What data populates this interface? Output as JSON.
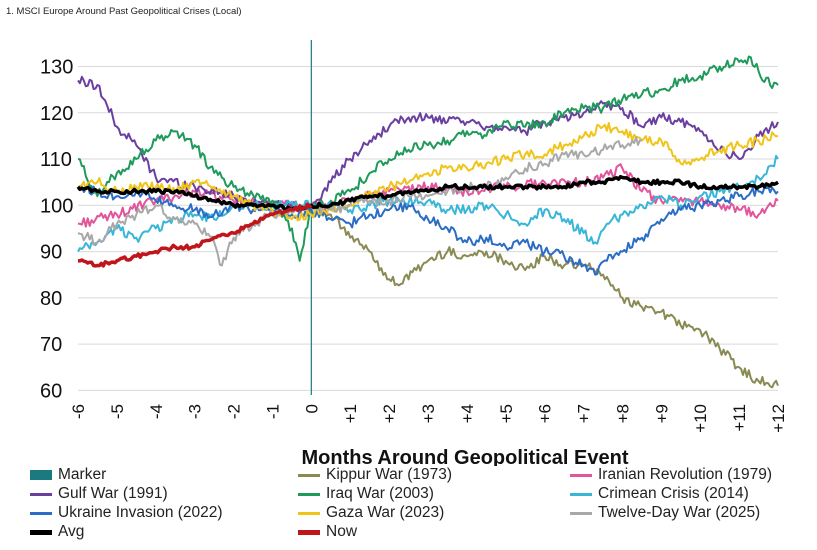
{
  "header": {
    "title": "1. MSCI Europe Around Past Geopolitical Crises (Local)"
  },
  "chart_data": {
    "type": "line",
    "title": "1. MSCI Europe Around Past Geopolitical Crises (Local)",
    "xlabel": "Months Around Geopolitical Event",
    "ylabel": "",
    "x_ticks": [
      "-6",
      "-5",
      "-4",
      "-3",
      "-2",
      "-1",
      "0",
      "+1",
      "+2",
      "+3",
      "+4",
      "+5",
      "+6",
      "+7",
      "+8",
      "+9",
      "+10",
      "+11",
      "+12"
    ],
    "y_ticks": [
      60,
      70,
      80,
      90,
      100,
      110,
      120,
      130
    ],
    "xlim": [
      -6,
      12
    ],
    "ylim": [
      59,
      134
    ],
    "grid": "horizontal",
    "marker_x": 0,
    "legend_position": "bottom",
    "series": [
      {
        "name": "Marker",
        "color": "#1a7a80",
        "width": 0,
        "box": true,
        "points": []
      },
      {
        "name": "Kippur War (1973)",
        "color": "#8a8a55",
        "width": 2,
        "points": [
          [
            0,
            100
          ],
          [
            0.5,
            98
          ],
          [
            1,
            93
          ],
          [
            1.5,
            90
          ],
          [
            2,
            84
          ],
          [
            2.3,
            83
          ],
          [
            2.7,
            86
          ],
          [
            3,
            88
          ],
          [
            3.5,
            90
          ],
          [
            4,
            89
          ],
          [
            4.5,
            90
          ],
          [
            5,
            88
          ],
          [
            5.5,
            86
          ],
          [
            6,
            89
          ],
          [
            6.5,
            87
          ],
          [
            7,
            87
          ],
          [
            7.5,
            85
          ],
          [
            8,
            80
          ],
          [
            8.5,
            78
          ],
          [
            9,
            77
          ],
          [
            9.5,
            74
          ],
          [
            10,
            73
          ],
          [
            10.5,
            69
          ],
          [
            11,
            65
          ],
          [
            11.5,
            62
          ],
          [
            12,
            61
          ]
        ]
      },
      {
        "name": "Iranian Revolution (1979)",
        "color": "#e0559b",
        "width": 2,
        "points": [
          [
            -6,
            96
          ],
          [
            -5,
            98
          ],
          [
            -4,
            101
          ],
          [
            -3,
            103
          ],
          [
            -2,
            101
          ],
          [
            -1,
            100
          ],
          [
            0,
            100
          ],
          [
            1,
            101
          ],
          [
            2,
            103
          ],
          [
            3,
            104
          ],
          [
            4,
            103
          ],
          [
            5,
            104
          ],
          [
            6,
            105
          ],
          [
            7,
            105
          ],
          [
            7.5,
            106
          ],
          [
            8,
            108
          ],
          [
            8.5,
            103
          ],
          [
            9,
            101
          ],
          [
            10,
            101
          ],
          [
            10.5,
            100
          ],
          [
            11,
            99
          ],
          [
            11.5,
            98
          ],
          [
            12,
            101
          ]
        ]
      },
      {
        "name": "Gulf War (1991)",
        "color": "#6b3fa0",
        "width": 2,
        "points": [
          [
            -6,
            127
          ],
          [
            -5.5,
            126
          ],
          [
            -5,
            117
          ],
          [
            -4.5,
            113
          ],
          [
            -4,
            106
          ],
          [
            -3,
            104
          ],
          [
            -2,
            102
          ],
          [
            -1,
            100
          ],
          [
            0,
            100
          ],
          [
            0.5,
            105
          ],
          [
            1,
            110
          ],
          [
            1.5,
            114
          ],
          [
            2,
            117
          ],
          [
            2.5,
            119
          ],
          [
            3,
            119
          ],
          [
            3.5,
            118
          ],
          [
            4,
            118
          ],
          [
            4.5,
            117
          ],
          [
            5,
            117
          ],
          [
            5.5,
            116
          ],
          [
            6,
            118
          ],
          [
            6.5,
            119
          ],
          [
            7,
            120
          ],
          [
            7.5,
            122
          ],
          [
            8,
            121
          ],
          [
            8.5,
            117
          ],
          [
            9,
            119
          ],
          [
            9.5,
            118
          ],
          [
            10,
            116
          ],
          [
            10.5,
            112
          ],
          [
            11,
            110
          ],
          [
            11.5,
            115
          ],
          [
            12,
            118
          ]
        ]
      },
      {
        "name": "Iraq War (2003)",
        "color": "#1f9a5a",
        "width": 2,
        "points": [
          [
            -6,
            110
          ],
          [
            -5.5,
            102
          ],
          [
            -5,
            107
          ],
          [
            -4.5,
            110
          ],
          [
            -4,
            114
          ],
          [
            -3.5,
            116
          ],
          [
            -3,
            113
          ],
          [
            -2.5,
            107
          ],
          [
            -2,
            104
          ],
          [
            -1,
            101
          ],
          [
            -0.5,
            95
          ],
          [
            -0.3,
            88
          ],
          [
            0,
            100
          ],
          [
            0.5,
            101
          ],
          [
            1,
            103
          ],
          [
            1.5,
            107
          ],
          [
            2,
            110
          ],
          [
            2.5,
            112
          ],
          [
            3,
            113
          ],
          [
            3.5,
            114
          ],
          [
            4,
            116
          ],
          [
            4.5,
            115
          ],
          [
            5,
            118
          ],
          [
            5.5,
            117
          ],
          [
            6,
            118
          ],
          [
            6.5,
            120
          ],
          [
            7,
            121
          ],
          [
            7.5,
            121
          ],
          [
            8,
            123
          ],
          [
            8.5,
            124
          ],
          [
            9,
            125
          ],
          [
            9.5,
            127
          ],
          [
            10,
            128
          ],
          [
            10.5,
            130
          ],
          [
            11,
            131
          ],
          [
            11.3,
            132
          ],
          [
            11.6,
            127
          ],
          [
            12,
            126
          ]
        ]
      },
      {
        "name": "Crimean Crisis (2014)",
        "color": "#38b6d8",
        "width": 2,
        "points": [
          [
            -6,
            90
          ],
          [
            -5.5,
            92
          ],
          [
            -5,
            95
          ],
          [
            -4.5,
            93
          ],
          [
            -4,
            95
          ],
          [
            -3.5,
            97
          ],
          [
            -3,
            98
          ],
          [
            -2.5,
            97
          ],
          [
            -2,
            100
          ],
          [
            -1.5,
            100
          ],
          [
            -1,
            100
          ],
          [
            0,
            100
          ],
          [
            0.5,
            100
          ],
          [
            1,
            99
          ],
          [
            1.5,
            100
          ],
          [
            2,
            101
          ],
          [
            3,
            101
          ],
          [
            3.5,
            99
          ],
          [
            4,
            99
          ],
          [
            4.5,
            100
          ],
          [
            5,
            98
          ],
          [
            5.5,
            96
          ],
          [
            6,
            99
          ],
          [
            6.5,
            97
          ],
          [
            7,
            94
          ],
          [
            7.3,
            92
          ],
          [
            7.6,
            96
          ],
          [
            8,
            98
          ],
          [
            8.5,
            100
          ],
          [
            9,
            102
          ],
          [
            9.5,
            100
          ],
          [
            10,
            102
          ],
          [
            10.5,
            103
          ],
          [
            11,
            104
          ],
          [
            11.5,
            106
          ],
          [
            12,
            110
          ]
        ]
      },
      {
        "name": "Ukraine Invasion (2022)",
        "color": "#2b6dc4",
        "width": 2,
        "points": [
          [
            -6,
            104
          ],
          [
            -5.5,
            103
          ],
          [
            -5,
            102
          ],
          [
            -4.5,
            103
          ],
          [
            -4,
            101
          ],
          [
            -3.5,
            100
          ],
          [
            -3,
            99
          ],
          [
            -2.5,
            98
          ],
          [
            -2,
            100
          ],
          [
            -1.5,
            99
          ],
          [
            -1,
            99
          ],
          [
            -0.5,
            98
          ],
          [
            0,
            99
          ],
          [
            0.5,
            97
          ],
          [
            1,
            96
          ],
          [
            1.5,
            98
          ],
          [
            2,
            99
          ],
          [
            2.5,
            100
          ],
          [
            3,
            97
          ],
          [
            3.5,
            95
          ],
          [
            4,
            92
          ],
          [
            4.5,
            93
          ],
          [
            5,
            91
          ],
          [
            5.5,
            92
          ],
          [
            6,
            90
          ],
          [
            6.5,
            89
          ],
          [
            7,
            87
          ],
          [
            7.3,
            85
          ],
          [
            7.6,
            88
          ],
          [
            8,
            90
          ],
          [
            8.5,
            93
          ],
          [
            9,
            97
          ],
          [
            9.5,
            99
          ],
          [
            10,
            100
          ],
          [
            10.5,
            101
          ],
          [
            11,
            102
          ],
          [
            11.5,
            103
          ],
          [
            12,
            103
          ]
        ]
      },
      {
        "name": "Gaza War (2023)",
        "color": "#f0c419",
        "width": 2,
        "points": [
          [
            -6,
            104
          ],
          [
            -5.5,
            105
          ],
          [
            -5,
            103
          ],
          [
            -4.5,
            104
          ],
          [
            -4,
            104
          ],
          [
            -3.5,
            103
          ],
          [
            -3,
            105
          ],
          [
            -2.5,
            104
          ],
          [
            -2,
            102
          ],
          [
            -1.5,
            100
          ],
          [
            -1,
            99
          ],
          [
            -0.5,
            97
          ],
          [
            0,
            98
          ],
          [
            0.5,
            99
          ],
          [
            1,
            100
          ],
          [
            1.5,
            103
          ],
          [
            2,
            104
          ],
          [
            2.5,
            105
          ],
          [
            3,
            107
          ],
          [
            3.5,
            108
          ],
          [
            4,
            108
          ],
          [
            4.5,
            109
          ],
          [
            5,
            110
          ],
          [
            5.5,
            111
          ],
          [
            6,
            111
          ],
          [
            6.5,
            113
          ],
          [
            7,
            115
          ],
          [
            7.5,
            117
          ],
          [
            8,
            116
          ],
          [
            8.5,
            114
          ],
          [
            9,
            114
          ],
          [
            9.5,
            109
          ],
          [
            10,
            110
          ],
          [
            10.5,
            112
          ],
          [
            11,
            113
          ],
          [
            11.5,
            114
          ],
          [
            12,
            115
          ]
        ]
      },
      {
        "name": "Twelve-Day War (2025)",
        "color": "#a8a8a8",
        "width": 2,
        "points": [
          [
            -6,
            94
          ],
          [
            -5.5,
            92
          ],
          [
            -5,
            96
          ],
          [
            -4.5,
            98
          ],
          [
            -4,
            100
          ],
          [
            -3.5,
            97
          ],
          [
            -3,
            96
          ],
          [
            -2.5,
            92
          ],
          [
            -2.3,
            87
          ],
          [
            -2,
            93
          ],
          [
            -1.5,
            96
          ],
          [
            -1,
            98
          ],
          [
            0,
            100
          ],
          [
            0.5,
            99
          ],
          [
            1,
            100
          ],
          [
            1.5,
            101
          ],
          [
            2,
            101
          ],
          [
            2.5,
            102
          ],
          [
            3,
            102
          ],
          [
            3.5,
            103
          ],
          [
            4,
            104
          ],
          [
            4.5,
            104
          ],
          [
            5,
            106
          ],
          [
            5.5,
            108
          ],
          [
            6,
            109
          ],
          [
            6.5,
            111
          ],
          [
            7,
            111
          ],
          [
            7.5,
            112
          ],
          [
            8,
            113
          ],
          [
            8.5,
            114
          ]
        ]
      },
      {
        "name": "Avg",
        "color": "#000000",
        "width": 3.5,
        "points": [
          [
            -6,
            104
          ],
          [
            -5.5,
            103
          ],
          [
            -5,
            103
          ],
          [
            -4.5,
            103
          ],
          [
            -4,
            103
          ],
          [
            -3.5,
            103
          ],
          [
            -3,
            102
          ],
          [
            -2.5,
            101
          ],
          [
            -2,
            100
          ],
          [
            -1.5,
            100
          ],
          [
            -1,
            100
          ],
          [
            -0.5,
            99
          ],
          [
            0,
            100
          ],
          [
            0.5,
            100
          ],
          [
            1,
            101
          ],
          [
            1.5,
            102
          ],
          [
            2,
            102
          ],
          [
            2.5,
            103
          ],
          [
            3,
            103
          ],
          [
            3.5,
            104
          ],
          [
            4,
            104
          ],
          [
            4.5,
            104
          ],
          [
            5,
            104
          ],
          [
            5.5,
            104
          ],
          [
            6,
            104
          ],
          [
            6.5,
            104
          ],
          [
            7,
            105
          ],
          [
            7.5,
            105
          ],
          [
            8,
            106
          ],
          [
            8.5,
            105
          ],
          [
            9,
            105
          ],
          [
            9.5,
            105
          ],
          [
            10,
            104
          ],
          [
            10.5,
            104
          ],
          [
            11,
            104
          ],
          [
            11.5,
            104
          ],
          [
            12,
            105
          ]
        ]
      },
      {
        "name": "Now",
        "color": "#c0161b",
        "width": 3.5,
        "points": [
          [
            -6,
            88
          ],
          [
            -5.5,
            87
          ],
          [
            -5,
            88
          ],
          [
            -4.5,
            89
          ],
          [
            -4,
            90
          ],
          [
            -3.5,
            91
          ],
          [
            -3,
            91
          ],
          [
            -2.5,
            93
          ],
          [
            -2,
            94
          ],
          [
            -1.5,
            96
          ],
          [
            -1,
            98
          ],
          [
            -0.5,
            99
          ],
          [
            0,
            100
          ]
        ]
      }
    ]
  }
}
